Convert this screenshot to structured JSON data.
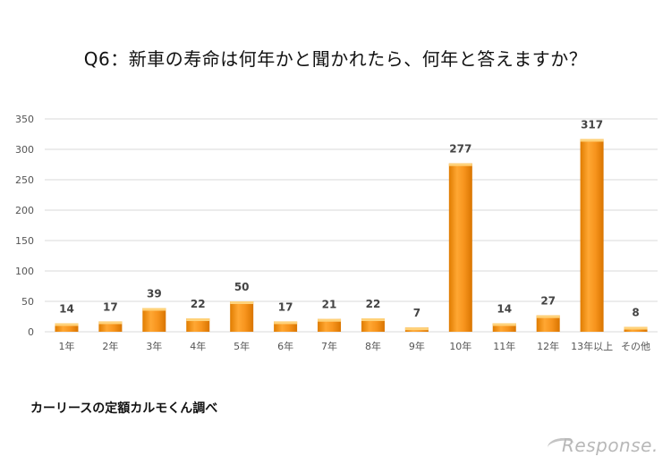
{
  "title": "Q6：新車の寿命は何年かと聞かれたら、何年と答えますか？",
  "source": "カーリースの定額カルモくん調べ",
  "watermark": "Response.",
  "colors": {
    "bar": "#f7941d",
    "bar_highlight": "#ffd27a",
    "grid": "#d9d9d9"
  },
  "chart_data": {
    "type": "bar",
    "categories": [
      "1年",
      "2年",
      "3年",
      "4年",
      "5年",
      "6年",
      "7年",
      "8年",
      "9年",
      "10年",
      "11年",
      "12年",
      "13年以上",
      "その他"
    ],
    "values": [
      14,
      17,
      39,
      22,
      50,
      17,
      21,
      22,
      7,
      277,
      14,
      27,
      317,
      8
    ],
    "ylim": [
      0,
      350
    ],
    "yticks": [
      0,
      50,
      100,
      150,
      200,
      250,
      300,
      350
    ],
    "grid": true,
    "data_labels": true
  }
}
